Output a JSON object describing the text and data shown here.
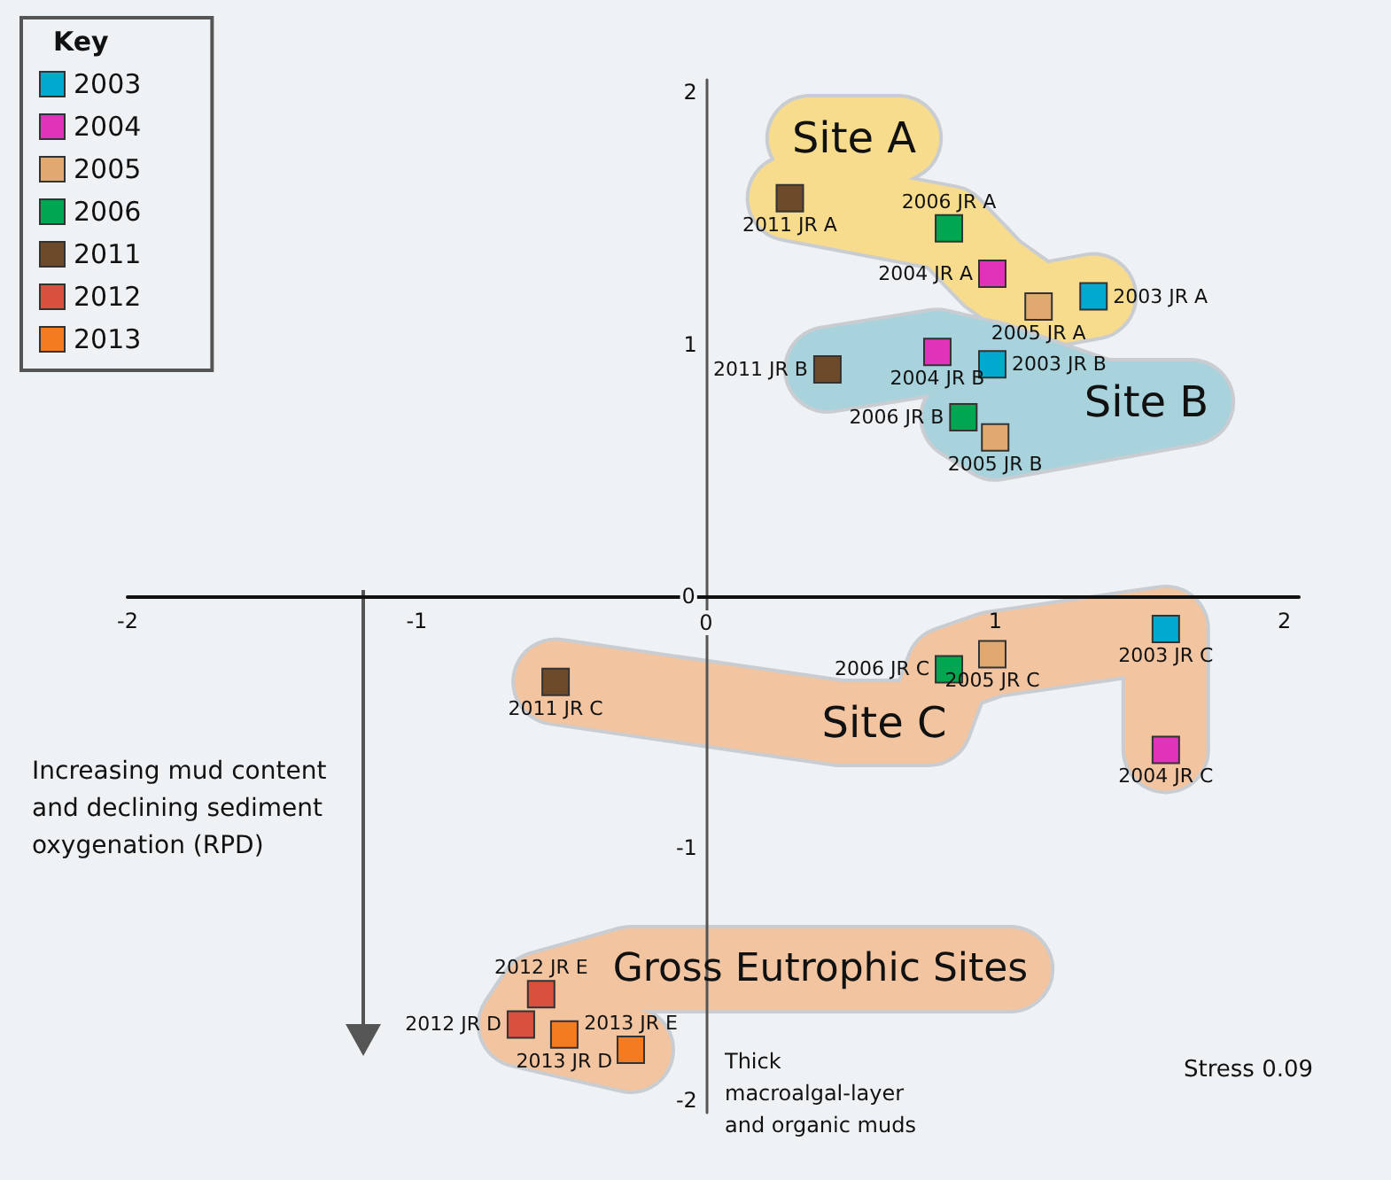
{
  "chart_data": {
    "type": "scatter",
    "legend_title": "Key",
    "legend": "top left",
    "marker": "square",
    "grid": false,
    "xlim": [
      -2,
      2.05
    ],
    "xticks": [
      -2,
      -1,
      0,
      1,
      2
    ],
    "ylim": [
      -2.05,
      2.05
    ],
    "yticks": [
      -2,
      -1,
      0,
      1,
      2
    ],
    "series": [
      {
        "name": "2003",
        "color": "#00a9ce",
        "x": [
          1.34,
          0.99,
          1.59
        ],
        "values": [
          1.19,
          0.92,
          -0.13
        ]
      },
      {
        "name": "2004",
        "color": "#e033b9",
        "x": [
          0.99,
          0.8,
          1.59
        ],
        "values": [
          1.28,
          0.97,
          -0.61
        ]
      },
      {
        "name": "2005",
        "color": "#e1a870",
        "x": [
          1.15,
          1.0,
          0.99
        ],
        "values": [
          1.15,
          0.63,
          -0.23
        ]
      },
      {
        "name": "2006",
        "color": "#00a651",
        "x": [
          0.84,
          0.89,
          0.84
        ],
        "values": [
          1.46,
          0.71,
          -0.29
        ]
      },
      {
        "name": "2011",
        "color": "#6c4a2a",
        "x": [
          0.29,
          0.42,
          -0.52
        ],
        "values": [
          1.58,
          0.9,
          -0.34
        ]
      },
      {
        "name": "2012",
        "color": "#d9503f",
        "x": [
          -0.57,
          -0.64
        ],
        "values": [
          -1.58,
          -1.7
        ]
      },
      {
        "name": "2013",
        "color": "#f47b20",
        "x": [
          -0.49,
          -0.26
        ],
        "values": [
          -1.74,
          -1.8
        ]
      }
    ],
    "annotations": [
      {
        "text": "2003 JR A",
        "x": 1.34,
        "y": 1.19
      },
      {
        "text": "2003 JR B",
        "x": 0.99,
        "y": 0.92
      },
      {
        "text": "2003 JR C",
        "x": 1.59,
        "y": -0.13
      },
      {
        "text": "2004 JR A",
        "x": 0.99,
        "y": 1.28
      },
      {
        "text": "2004 JR B",
        "x": 0.8,
        "y": 0.97
      },
      {
        "text": "2004 JR C",
        "x": 1.59,
        "y": -0.61
      },
      {
        "text": "2005 JR A",
        "x": 1.15,
        "y": 1.15
      },
      {
        "text": "2005 JR B",
        "x": 1.0,
        "y": 0.63
      },
      {
        "text": "2005 JR C",
        "x": 0.99,
        "y": -0.23
      },
      {
        "text": "2006 JR A",
        "x": 0.84,
        "y": 1.46
      },
      {
        "text": "2006 JR B",
        "x": 0.89,
        "y": 0.71
      },
      {
        "text": "2006 JR C",
        "x": 0.84,
        "y": -0.29
      },
      {
        "text": "2011 JR A",
        "x": 0.29,
        "y": 1.58
      },
      {
        "text": "2011 JR B",
        "x": 0.42,
        "y": 0.9
      },
      {
        "text": "2011 JR C",
        "x": -0.52,
        "y": -0.34
      },
      {
        "text": "2012 JR E",
        "x": -0.57,
        "y": -1.58
      },
      {
        "text": "2012 JR D",
        "x": -0.64,
        "y": -1.7
      },
      {
        "text": "2013 JR D",
        "x": -0.49,
        "y": -1.74
      },
      {
        "text": "2013 JR E",
        "x": -0.26,
        "y": -1.8
      },
      "Site A",
      "Site B",
      "Site C",
      "Gross Eutrophic Sites",
      "Increasing mud content and declining sediment oxygenation (RPD)",
      "Thick macroalgal-layer and organic muds",
      "Stress 0.09"
    ]
  }
}
